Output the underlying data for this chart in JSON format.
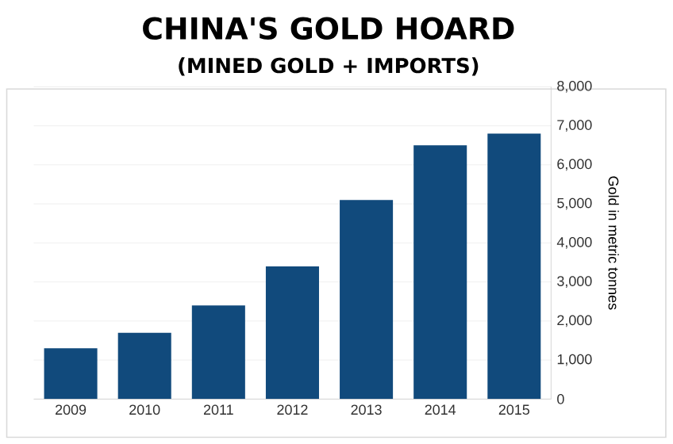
{
  "chart_data": {
    "type": "bar",
    "title": "CHINA'S GOLD HOARD",
    "subtitle": "(MINED GOLD + IMPORTS)",
    "ylabel": "Gold in metric tonnes",
    "categories": [
      "2009",
      "2010",
      "2011",
      "2012",
      "2013",
      "2014",
      "2015"
    ],
    "values": [
      1300,
      1700,
      2400,
      3400,
      5100,
      6500,
      6800
    ],
    "color": "#114a7c",
    "ylim": [
      0,
      8000
    ],
    "yticks": [
      0,
      {
        "value": 1000,
        "label": "1,000"
      },
      {
        "value": 2000,
        "label": "2,000"
      },
      {
        "value": 3000,
        "label": "3,000"
      },
      {
        "value": 4000,
        "label": "4,000"
      },
      {
        "value": 5000,
        "label": "5,000"
      },
      {
        "value": 6000,
        "label": "6,000"
      },
      {
        "value": 7000,
        "label": "7,000"
      },
      {
        "value": 8000,
        "label": "8,000"
      }
    ],
    "grid": "y"
  }
}
